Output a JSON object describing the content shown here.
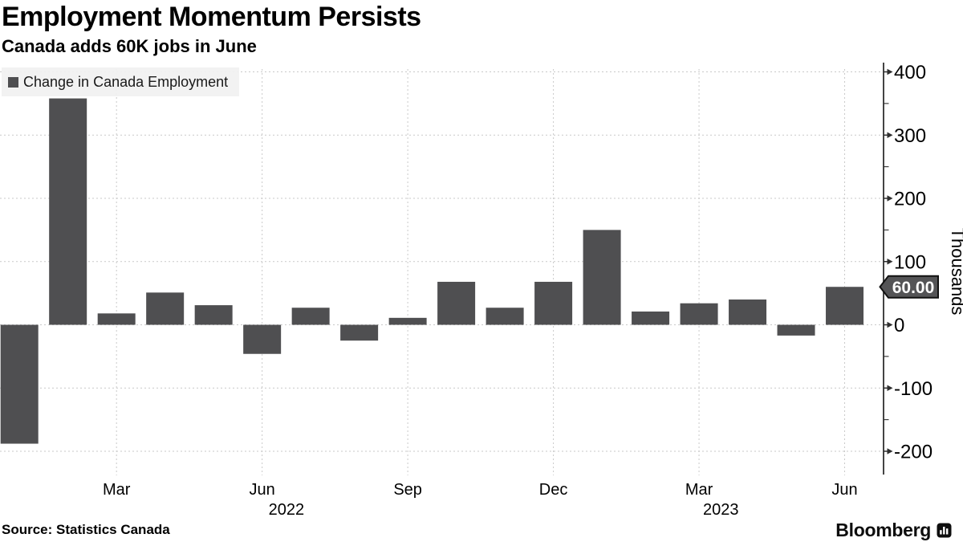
{
  "colors": {
    "bar": "#4f4f51",
    "grid": "#c9c9c9",
    "axis": "#2f2f2f",
    "legend_bg": "#f1f1f1",
    "callout_bg": "#545456",
    "callout_border": "#111111",
    "callout_text": "#ffffff",
    "text": "#000000"
  },
  "chart_data": {
    "type": "bar",
    "title": "Employment Momentum Persists",
    "subtitle": "Canada adds 60K jobs in June",
    "legend": "Change in Canada Employment",
    "ylabel": "Thousands",
    "unit": "thousands of jobs, monthly change",
    "grid": true,
    "legend_position": "top-left",
    "ylim": [
      -240,
      415
    ],
    "categories": [
      "Jan 2022",
      "Feb 2022",
      "Mar 2022",
      "Apr 2022",
      "May 2022",
      "Jun 2022",
      "Jul 2022",
      "Aug 2022",
      "Sep 2022",
      "Oct 2022",
      "Nov 2022",
      "Dec 2022",
      "Jan 2023",
      "Feb 2023",
      "Mar 2023",
      "Apr 2023",
      "May 2023",
      "Jun 2023"
    ],
    "values": [
      -188,
      358,
      18,
      51,
      31,
      -46,
      27,
      -25,
      11,
      68,
      27,
      68,
      150,
      21,
      34,
      40,
      -17,
      60
    ],
    "yticks_major": [
      400,
      300,
      200,
      100,
      0,
      -100,
      -200
    ],
    "yticks_minor": [
      350,
      250,
      150,
      50,
      -50,
      -150
    ],
    "xticks": [
      {
        "i": 2,
        "label": "Mar"
      },
      {
        "i": 5,
        "label": "Jun"
      },
      {
        "i": 8,
        "label": "Sep"
      },
      {
        "i": 11,
        "label": "Dec"
      },
      {
        "i": 14,
        "label": "Mar"
      },
      {
        "i": 17,
        "label": "Jun"
      }
    ],
    "year_labels": [
      {
        "i": 5.5,
        "text": "2022"
      },
      {
        "i": 14.45,
        "text": "2023"
      }
    ],
    "callout": {
      "value": 60,
      "label": "60.00"
    }
  },
  "footer": {
    "source": "Source: Statistics Canada",
    "brand": "Bloomberg"
  }
}
